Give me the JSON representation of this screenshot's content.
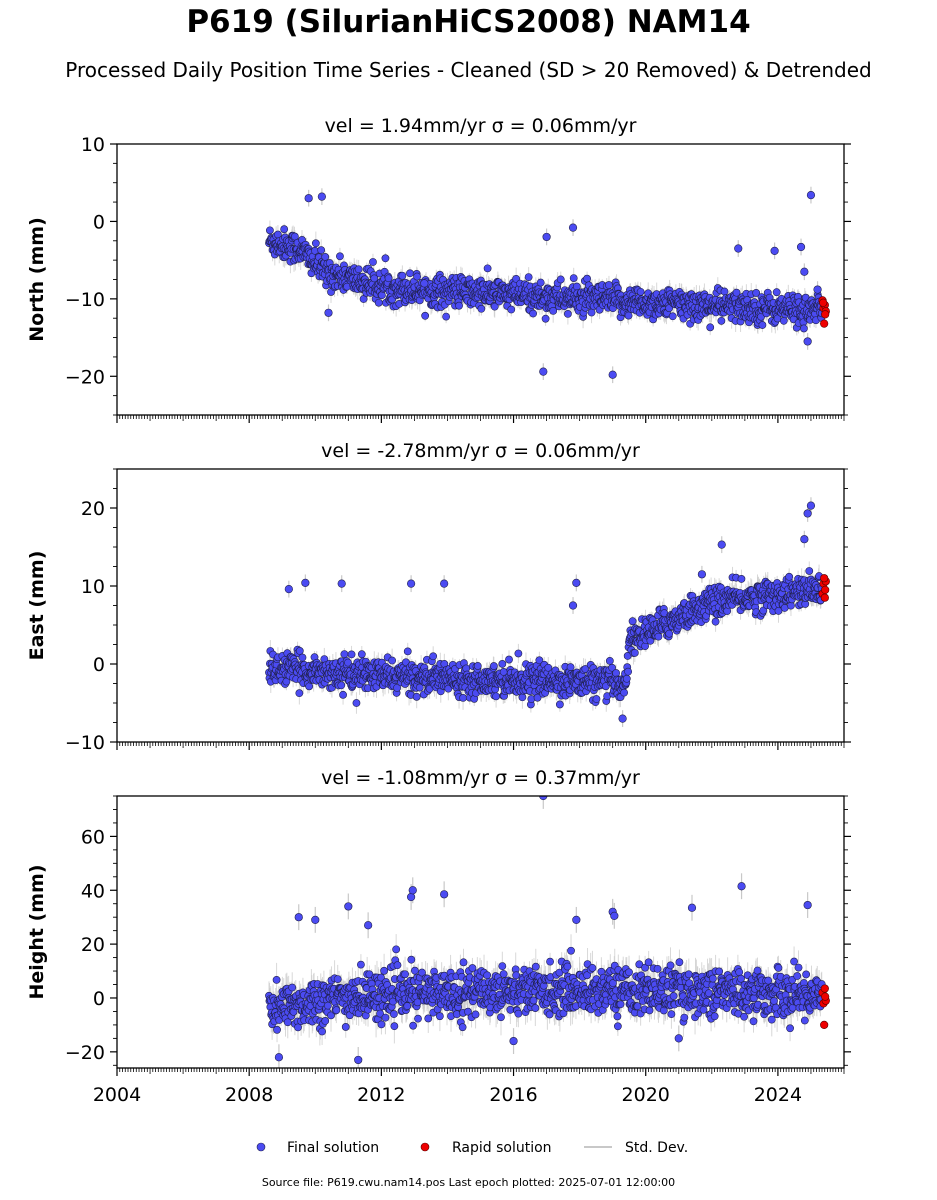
{
  "header": {
    "title": "P619 (SilurianHiCS2008) NAM14",
    "subtitle": "Processed Daily Position Time Series - Cleaned (SD > 20 Removed) & Detrended"
  },
  "legend": {
    "final": "Final solution",
    "rapid": "Rapid solution",
    "std": "Std. Dev."
  },
  "footer": {
    "source": "Source file: P619.cwu.nam14.pos  Last epoch plotted: 2025-07-01 12:00:00"
  },
  "colors": {
    "final": "#4b4bf2",
    "rapid": "#ee0000",
    "std": "#c8c8c8"
  },
  "chart_data": [
    {
      "type": "scatter",
      "panel_title": "vel = 1.94mm/yr   σ = 0.06mm/yr",
      "ylabel": "North (mm)",
      "xlim": [
        2004,
        2026
      ],
      "ylim": [
        -25,
        10
      ],
      "yticks": [
        -20,
        -10,
        0,
        10
      ],
      "xticks": [
        2004,
        2008,
        2012,
        2016,
        2020,
        2024
      ],
      "trend": [
        [
          2008.6,
          -2.5
        ],
        [
          2009.5,
          -3.5
        ],
        [
          2010.3,
          -6.5
        ],
        [
          2012,
          -8.5
        ],
        [
          2016,
          -9.5
        ],
        [
          2020,
          -10.5
        ],
        [
          2025.2,
          -11.5
        ]
      ],
      "final_solution_band_mm": 1.8,
      "outliers": [
        [
          2009.8,
          3
        ],
        [
          2010.2,
          3.2
        ],
        [
          2010.4,
          -11.8
        ],
        [
          2013.3,
          -8
        ],
        [
          2017.8,
          -0.8
        ],
        [
          2017.0,
          -2
        ],
        [
          2016.9,
          -19.4
        ],
        [
          2019.0,
          -19.8
        ],
        [
          2022.8,
          -3.5
        ],
        [
          2023.9,
          -3.8
        ],
        [
          2024.7,
          -3.3
        ],
        [
          2025.0,
          3.4
        ],
        [
          2024.8,
          -6.5
        ],
        [
          2024.9,
          -15.5
        ],
        [
          2025.2,
          -8.8
        ]
      ],
      "rapid_solution": [
        [
          2025.35,
          -10.2
        ],
        [
          2025.38,
          -11.2
        ],
        [
          2025.42,
          -10.8
        ],
        [
          2025.45,
          -11.6
        ],
        [
          2025.4,
          -13.2
        ],
        [
          2025.43,
          -12
        ],
        [
          2025.37,
          -10.5
        ]
      ]
    },
    {
      "type": "scatter",
      "panel_title": "vel = -2.78mm/yr   σ = 0.06mm/yr",
      "ylabel": "East (mm)",
      "xlim": [
        2004,
        2026
      ],
      "ylim": [
        -10,
        25
      ],
      "yticks": [
        -10,
        0,
        10,
        20
      ],
      "xticks": [
        2004,
        2008,
        2012,
        2016,
        2020,
        2024
      ],
      "trend": [
        [
          2008.6,
          -0.5
        ],
        [
          2012,
          -1.5
        ],
        [
          2016,
          -2
        ],
        [
          2019.4,
          -2.5
        ],
        [
          2019.5,
          3
        ],
        [
          2021,
          6
        ],
        [
          2022,
          8
        ],
        [
          2025.2,
          9.5
        ]
      ],
      "final_solution_band_mm": 1.8,
      "outliers": [
        [
          2009.2,
          9.6
        ],
        [
          2009.7,
          10.4
        ],
        [
          2010.8,
          10.3
        ],
        [
          2012.9,
          10.3
        ],
        [
          2013.9,
          10.3
        ],
        [
          2017.9,
          10.4
        ],
        [
          2017.8,
          7.5
        ],
        [
          2021.7,
          11.5
        ],
        [
          2022.3,
          15.3
        ],
        [
          2024.9,
          19.3
        ],
        [
          2025.0,
          20.3
        ],
        [
          2024.8,
          16
        ],
        [
          2019.3,
          -7
        ]
      ],
      "rapid_solution": [
        [
          2025.35,
          9
        ],
        [
          2025.38,
          10.3
        ],
        [
          2025.42,
          8.5
        ],
        [
          2025.45,
          10.6
        ],
        [
          2025.4,
          11
        ],
        [
          2025.43,
          9.5
        ]
      ]
    },
    {
      "type": "scatter",
      "panel_title": "vel = -1.08mm/yr   σ = 0.37mm/yr",
      "ylabel": "Height (mm)",
      "xlabel_ticks": [
        "2004",
        "2008",
        "2012",
        "2016",
        "2020",
        "2024"
      ],
      "xlim": [
        2004,
        2026
      ],
      "ylim": [
        -26,
        75
      ],
      "yticks": [
        -20,
        0,
        20,
        40,
        60
      ],
      "xticks": [
        2004,
        2008,
        2012,
        2016,
        2020,
        2024
      ],
      "trend": [
        [
          2008.6,
          -5
        ],
        [
          2010,
          -1
        ],
        [
          2012,
          1
        ],
        [
          2016,
          3
        ],
        [
          2020,
          3
        ],
        [
          2025.2,
          1
        ]
      ],
      "final_solution_band_mm": 8,
      "outliers": [
        [
          2009.5,
          30
        ],
        [
          2010.0,
          29
        ],
        [
          2011.0,
          34
        ],
        [
          2011.6,
          27
        ],
        [
          2012.9,
          37.5
        ],
        [
          2012.95,
          40
        ],
        [
          2013.9,
          38.5
        ],
        [
          2016.9,
          75
        ],
        [
          2017.9,
          29
        ],
        [
          2019.0,
          32
        ],
        [
          2019.05,
          30.5
        ],
        [
          2021.4,
          33.5
        ],
        [
          2022.9,
          41.5
        ],
        [
          2024.9,
          34.5
        ],
        [
          2008.9,
          -22
        ],
        [
          2011.3,
          -23
        ],
        [
          2016.0,
          -16
        ],
        [
          2021.0,
          -15
        ]
      ],
      "rapid_solution": [
        [
          2025.35,
          2
        ],
        [
          2025.38,
          -2
        ],
        [
          2025.42,
          3.5
        ],
        [
          2025.45,
          -1
        ],
        [
          2025.4,
          -10
        ],
        [
          2025.43,
          0.5
        ]
      ]
    }
  ]
}
